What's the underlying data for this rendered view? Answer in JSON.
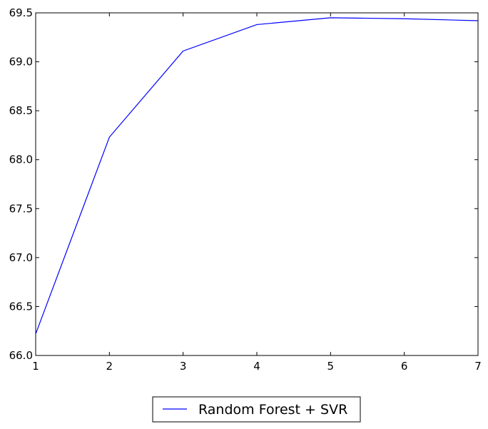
{
  "chart_data": {
    "type": "line",
    "title": "",
    "xlabel": "",
    "ylabel": "",
    "x": [
      1,
      2,
      3,
      4,
      5,
      6,
      7
    ],
    "series": [
      {
        "name": "Random Forest + SVR",
        "color": "#0000ff",
        "values": [
          66.22,
          68.23,
          69.11,
          69.38,
          69.45,
          69.44,
          69.42
        ]
      }
    ],
    "xlim": [
      1,
      7
    ],
    "ylim": [
      66.0,
      69.5
    ],
    "xticks": [
      "1",
      "2",
      "3",
      "4",
      "5",
      "6",
      "7"
    ],
    "yticks": [
      "66.0",
      "66.5",
      "67.0",
      "67.5",
      "68.0",
      "68.5",
      "69.0",
      "69.5"
    ],
    "grid": false,
    "legend_position": "bottom-center"
  }
}
